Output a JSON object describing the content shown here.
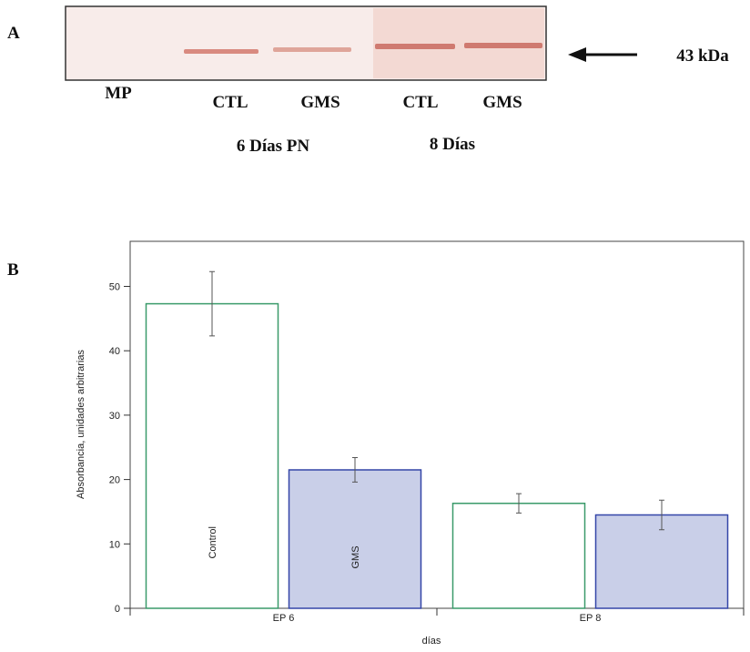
{
  "blot": {
    "panel_label": "A",
    "lanes": [
      "MP",
      "CTL",
      "GMS",
      "CTL",
      "GMS"
    ],
    "groups": [
      "6 Días PN",
      "8 Días"
    ],
    "marker": "43 kDa"
  },
  "chart_data": {
    "type": "bar",
    "panel_label": "B",
    "categories": [
      "EP 6",
      "EP 8"
    ],
    "xlabel": "días",
    "ylabel": "Absorbancia, unidades arbitrarias",
    "series": [
      {
        "name": "Control",
        "color": "#3a9a6a",
        "fill": "#ffffff",
        "values": [
          47.3,
          16.3
        ],
        "errors": [
          5,
          1.5
        ]
      },
      {
        "name": "GMS",
        "color": "#3446a8",
        "fill": "#c9cfe8",
        "values": [
          21.5,
          14.5
        ],
        "errors": [
          1.9,
          2.3
        ]
      }
    ],
    "ylim": [
      0,
      57
    ],
    "yticks": [
      0,
      10,
      20,
      30,
      40,
      50
    ]
  }
}
